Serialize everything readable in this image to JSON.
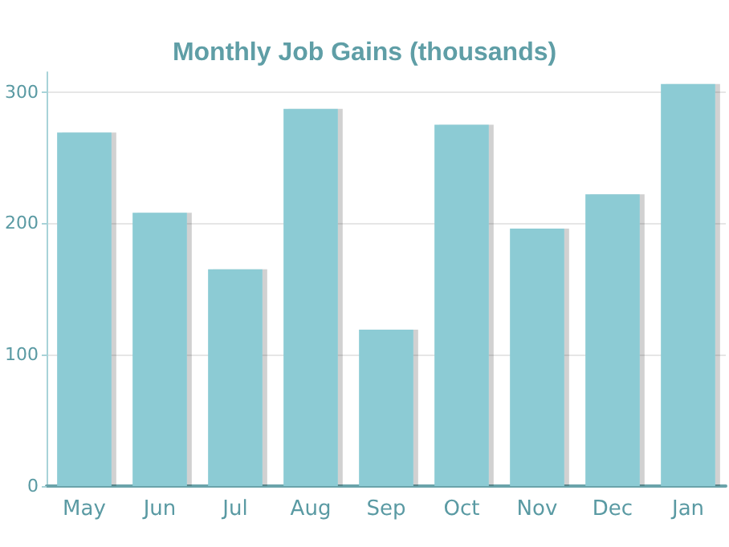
{
  "chart_data": {
    "type": "bar",
    "title": "Monthly Job Gains (thousands)",
    "categories": [
      "May",
      "Jun",
      "Jul",
      "Aug",
      "Sep",
      "Oct",
      "Nov",
      "Dec",
      "Jan"
    ],
    "values": [
      269,
      208,
      165,
      287,
      119,
      275,
      196,
      222,
      306
    ],
    "color": "#8ccbd4",
    "ylim": [
      0,
      315
    ],
    "yticks": [
      0,
      100,
      200,
      300
    ],
    "grid": "y"
  }
}
